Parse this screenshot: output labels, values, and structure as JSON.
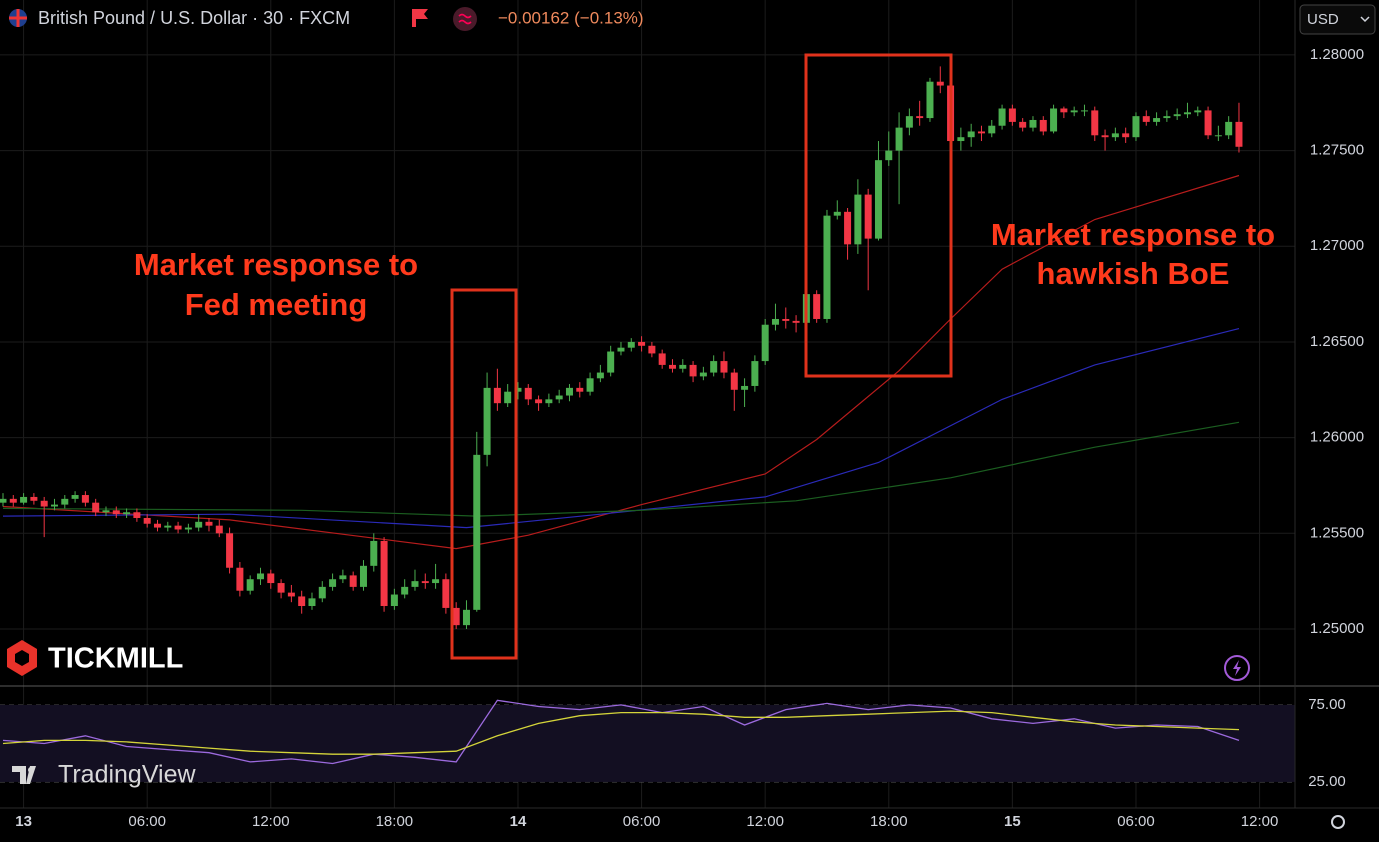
{
  "header": {
    "symbol": "British Pound / U.S. Dollar · 30 · FXCM",
    "change": "−0.00162 (−0.13%)",
    "currency": "USD"
  },
  "annotations": [
    {
      "lines": [
        "Market response to",
        "Fed meeting"
      ]
    },
    {
      "lines": [
        "Market response to",
        "hawkish BoE"
      ]
    }
  ],
  "logos": {
    "broker": "TICKMILL",
    "platform": "TradingView"
  },
  "chart_data": [
    {
      "type": "candlestick",
      "up_color": "#4caf50",
      "down_color": "#f23645",
      "xlim": [
        -0.29,
        125.44
      ],
      "ylim": [
        1.24702,
        1.28287
      ],
      "xticks": [
        {
          "value": 2,
          "label": "13"
        },
        {
          "value": 14,
          "label": "06:00"
        },
        {
          "value": 26,
          "label": "12:00"
        },
        {
          "value": 38,
          "label": "18:00"
        },
        {
          "value": 50,
          "label": "14"
        },
        {
          "value": 62,
          "label": "06:00"
        },
        {
          "value": 74,
          "label": "12:00"
        },
        {
          "value": 86,
          "label": "18:00"
        },
        {
          "value": 98,
          "label": "15"
        },
        {
          "value": 110,
          "label": "06:00"
        },
        {
          "value": 122,
          "label": "12:00"
        }
      ],
      "yticks": [
        {
          "value": 1.28,
          "label": "1.28000"
        },
        {
          "value": 1.275,
          "label": "1.27500"
        },
        {
          "value": 1.27,
          "label": "1.27000"
        },
        {
          "value": 1.265,
          "label": "1.26500"
        },
        {
          "value": 1.26,
          "label": "1.26000"
        },
        {
          "value": 1.255,
          "label": "1.25500"
        },
        {
          "value": 1.25,
          "label": "1.25000"
        }
      ],
      "grid": true,
      "open": [
        1.2566,
        1.2568,
        1.2566,
        1.2569,
        1.2567,
        1.2564,
        1.2565,
        1.2568,
        1.257,
        1.2566,
        1.2561,
        1.2562,
        1.256,
        1.2561,
        1.2558,
        1.2555,
        1.2553,
        1.2554,
        1.2552,
        1.2553,
        1.2556,
        1.2554,
        1.255,
        1.2532,
        1.252,
        1.2526,
        1.2529,
        1.2524,
        1.2519,
        1.2517,
        1.2512,
        1.2516,
        1.2522,
        1.2526,
        1.2528,
        1.2522,
        1.2533,
        1.2546,
        1.2512,
        1.2518,
        1.2522,
        1.2525,
        1.2524,
        1.2526,
        1.2511,
        1.2502,
        1.251,
        1.2591,
        1.2626,
        1.2618,
        1.2624,
        1.2626,
        1.262,
        1.2618,
        1.262,
        1.2622,
        1.2626,
        1.2624,
        1.2631,
        1.2634,
        1.2645,
        1.2647,
        1.265,
        1.2648,
        1.2644,
        1.2638,
        1.2636,
        1.2638,
        1.2632,
        1.2634,
        1.264,
        1.2634,
        1.2625,
        1.2627,
        1.264,
        1.2659,
        1.2662,
        1.2661,
        1.266,
        1.2675,
        1.2662,
        1.2716,
        1.2718,
        1.2701,
        1.2727,
        1.2704,
        1.2745,
        1.275,
        1.2762,
        1.2768,
        1.2767,
        1.2786,
        1.2784,
        1.2755,
        1.2757,
        1.276,
        1.2759,
        1.2763,
        1.2772,
        1.2765,
        1.2762,
        1.2766,
        1.276,
        1.2772,
        1.277,
        1.2771,
        1.2771,
        1.2758,
        1.2757,
        1.2759,
        1.2757,
        1.2768,
        1.2765,
        1.2767,
        1.2768,
        1.2769,
        1.277,
        1.2771,
        1.2758,
        1.2758,
        1.2765
      ],
      "high": [
        1.2571,
        1.257,
        1.2571,
        1.2571,
        1.2569,
        1.2568,
        1.257,
        1.2572,
        1.2572,
        1.2568,
        1.2564,
        1.2564,
        1.2563,
        1.2563,
        1.256,
        1.2557,
        1.2556,
        1.2556,
        1.2555,
        1.256,
        1.2558,
        1.2557,
        1.2553,
        1.2535,
        1.2528,
        1.2532,
        1.2531,
        1.2526,
        1.2523,
        1.252,
        1.2519,
        1.2525,
        1.2529,
        1.2531,
        1.253,
        1.2536,
        1.255,
        1.2548,
        1.2521,
        1.2526,
        1.2531,
        1.2529,
        1.2534,
        1.2529,
        1.2514,
        1.2515,
        1.2603,
        1.2634,
        1.2636,
        1.2628,
        1.2629,
        1.2628,
        1.2622,
        1.2623,
        1.2625,
        1.2628,
        1.2629,
        1.2634,
        1.2638,
        1.2648,
        1.265,
        1.2652,
        1.2653,
        1.265,
        1.2646,
        1.2641,
        1.2641,
        1.264,
        1.2637,
        1.2643,
        1.2645,
        1.2636,
        1.2631,
        1.2643,
        1.2662,
        1.267,
        1.2668,
        1.2664,
        1.2682,
        1.2677,
        1.2719,
        1.2724,
        1.272,
        1.2735,
        1.273,
        1.2755,
        1.276,
        1.277,
        1.2772,
        1.2776,
        1.2788,
        1.2794,
        1.2787,
        1.2762,
        1.2764,
        1.2763,
        1.2766,
        1.2774,
        1.2774,
        1.2767,
        1.2768,
        1.2768,
        1.2774,
        1.2773,
        1.2773,
        1.2774,
        1.2773,
        1.2761,
        1.2762,
        1.2762,
        1.277,
        1.2771,
        1.277,
        1.2771,
        1.2772,
        1.2775,
        1.2773,
        1.2773,
        1.2763,
        1.2768,
        1.2775
      ],
      "low": [
        1.2564,
        1.2564,
        1.2565,
        1.2565,
        1.2548,
        1.2562,
        1.2563,
        1.2566,
        1.2564,
        1.2559,
        1.2559,
        1.2558,
        1.2558,
        1.2556,
        1.2553,
        1.2551,
        1.2551,
        1.255,
        1.255,
        1.2551,
        1.2551,
        1.2548,
        1.2529,
        1.2517,
        1.2518,
        1.2523,
        1.2521,
        1.2516,
        1.2514,
        1.2508,
        1.251,
        1.2514,
        1.252,
        1.2524,
        1.252,
        1.252,
        1.253,
        1.2509,
        1.251,
        1.2516,
        1.252,
        1.2521,
        1.2521,
        1.2508,
        1.25,
        1.25,
        1.2509,
        1.2585,
        1.2614,
        1.2616,
        1.262,
        1.2617,
        1.2614,
        1.2616,
        1.2618,
        1.2619,
        1.2621,
        1.2622,
        1.2629,
        1.2632,
        1.2643,
        1.2645,
        1.2645,
        1.2642,
        1.2636,
        1.2634,
        1.2634,
        1.2629,
        1.263,
        1.2632,
        1.2631,
        1.2614,
        1.2616,
        1.2624,
        1.2638,
        1.2656,
        1.2657,
        1.2655,
        1.2657,
        1.266,
        1.266,
        1.2714,
        1.2693,
        1.2696,
        1.2677,
        1.2703,
        1.2742,
        1.2722,
        1.2758,
        1.2763,
        1.2765,
        1.278,
        1.2752,
        1.275,
        1.2752,
        1.2755,
        1.2757,
        1.2761,
        1.2763,
        1.276,
        1.276,
        1.2758,
        1.2759,
        1.2767,
        1.2768,
        1.2768,
        1.2755,
        1.275,
        1.2755,
        1.2754,
        1.2755,
        1.2763,
        1.2763,
        1.2765,
        1.2766,
        1.2767,
        1.2768,
        1.2756,
        1.2755,
        1.2756,
        1.2749
      ],
      "close": [
        1.2568,
        1.2566,
        1.2569,
        1.2567,
        1.2564,
        1.2565,
        1.2568,
        1.257,
        1.2566,
        1.2561,
        1.2562,
        1.256,
        1.2561,
        1.2558,
        1.2555,
        1.2553,
        1.2554,
        1.2552,
        1.2553,
        1.2556,
        1.2554,
        1.255,
        1.2532,
        1.252,
        1.2526,
        1.2529,
        1.2524,
        1.2519,
        1.2517,
        1.2512,
        1.2516,
        1.2522,
        1.2526,
        1.2528,
        1.2522,
        1.2533,
        1.2546,
        1.2512,
        1.2518,
        1.2522,
        1.2525,
        1.2524,
        1.2526,
        1.2511,
        1.2502,
        1.251,
        1.2591,
        1.2626,
        1.2618,
        1.2624,
        1.2626,
        1.262,
        1.2618,
        1.262,
        1.2622,
        1.2626,
        1.2624,
        1.2631,
        1.2634,
        1.2645,
        1.2647,
        1.265,
        1.2648,
        1.2644,
        1.2638,
        1.2636,
        1.2638,
        1.2632,
        1.2634,
        1.264,
        1.2634,
        1.2625,
        1.2627,
        1.264,
        1.2659,
        1.2662,
        1.2661,
        1.266,
        1.2675,
        1.2662,
        1.2716,
        1.2718,
        1.2701,
        1.2727,
        1.2704,
        1.2745,
        1.275,
        1.2762,
        1.2768,
        1.2767,
        1.2786,
        1.2784,
        1.2755,
        1.2757,
        1.276,
        1.2759,
        1.2763,
        1.2772,
        1.2765,
        1.2762,
        1.2766,
        1.276,
        1.2772,
        1.277,
        1.2771,
        1.2771,
        1.2758,
        1.2757,
        1.2759,
        1.2757,
        1.2768,
        1.2765,
        1.2767,
        1.2768,
        1.2769,
        1.277,
        1.2771,
        1.2758,
        1.2758,
        1.2765,
        1.2752
      ],
      "series": [
        {
          "color": "#b71c1c",
          "x": [
            0,
            22,
            44,
            51,
            62,
            74,
            79,
            87,
            92,
            97,
            106,
            120
          ],
          "values": [
            1.2564,
            1.2557,
            1.2542,
            1.2549,
            1.2565,
            1.2581,
            1.2599,
            1.2635,
            1.2662,
            1.2688,
            1.2714,
            1.2737
          ]
        },
        {
          "color": "#2a2ab8",
          "x": [
            0,
            22,
            45,
            58,
            74,
            85,
            97,
            106,
            120
          ],
          "values": [
            1.2559,
            1.256,
            1.2553,
            1.256,
            1.2569,
            1.2587,
            1.262,
            1.2638,
            1.2657
          ]
        },
        {
          "color": "#1b5e20",
          "x": [
            0,
            29,
            46,
            62,
            77,
            92,
            106,
            120
          ],
          "values": [
            1.2563,
            1.2562,
            1.2559,
            1.2562,
            1.2567,
            1.2579,
            1.2595,
            1.2608
          ]
        }
      ]
    },
    {
      "type": "line",
      "xlim": [
        -0.29,
        125.44
      ],
      "ylim": [
        8.1,
        87.3
      ],
      "yticks": [
        {
          "value": 75,
          "label": "75.00"
        },
        {
          "value": 25,
          "label": "25.00"
        }
      ],
      "levels": [
        75,
        50,
        25
      ],
      "x": [
        0,
        4,
        8,
        12,
        16,
        20,
        24,
        28,
        32,
        36,
        40,
        44,
        48,
        52,
        56,
        60,
        64,
        68,
        72,
        76,
        80,
        84,
        88,
        92,
        96,
        100,
        104,
        108,
        112,
        116,
        120
      ],
      "series": [
        {
          "color": "#9c6ade",
          "values": [
            52,
            50,
            55,
            48,
            46,
            44,
            38,
            40,
            37,
            43,
            41,
            38,
            78,
            74,
            72,
            75,
            70,
            74,
            62,
            72,
            76,
            72,
            75,
            73,
            66,
            63,
            66,
            60,
            62,
            61,
            52
          ]
        },
        {
          "color": "#d4d43a",
          "values": [
            50,
            52,
            52,
            51,
            49,
            47,
            45,
            44,
            43,
            43,
            44,
            45,
            55,
            63,
            68,
            70,
            70,
            69,
            67,
            67,
            68,
            69,
            70,
            71,
            70,
            67,
            64,
            62,
            61,
            60,
            59
          ]
        }
      ]
    }
  ]
}
